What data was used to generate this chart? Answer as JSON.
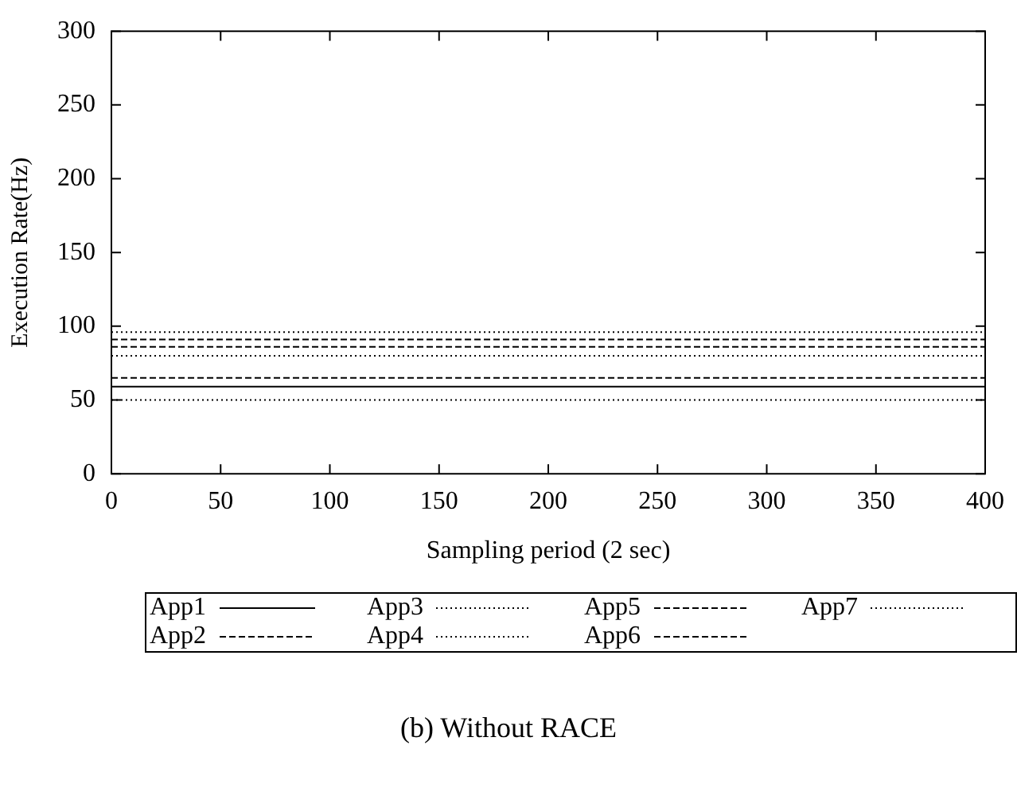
{
  "chart_data": {
    "type": "line",
    "xlabel": "Sampling period (2 sec)",
    "ylabel": "Execution Rate(Hz)",
    "annotations": [
      "(b) Without RACE"
    ],
    "x": [
      0,
      400
    ],
    "xlim": [
      0,
      400
    ],
    "xticks": [
      0,
      50,
      100,
      150,
      200,
      250,
      300,
      350,
      400
    ],
    "ylim": [
      0,
      300
    ],
    "yticks": [
      0,
      50,
      100,
      150,
      200,
      250,
      300
    ],
    "grid": false,
    "legend": "bottom",
    "marker": "none",
    "series": [
      {
        "name": "App1",
        "color": "#000000",
        "line_style": "solid",
        "values": [
          59,
          59
        ]
      },
      {
        "name": "App2",
        "color": "#000000",
        "line_style": "dashed",
        "values": [
          86,
          86
        ]
      },
      {
        "name": "App3",
        "color": "#000000",
        "line_style": "dotted",
        "values": [
          50,
          50
        ]
      },
      {
        "name": "App4",
        "color": "#000000",
        "line_style": "dotted",
        "values": [
          80,
          80
        ]
      },
      {
        "name": "App5",
        "color": "#000000",
        "line_style": "dashed",
        "values": [
          91,
          91
        ]
      },
      {
        "name": "App6",
        "color": "#000000",
        "line_style": "dashed",
        "values": [
          65,
          65
        ]
      },
      {
        "name": "App7",
        "color": "#000000",
        "line_style": "dotted",
        "values": [
          96,
          96
        ]
      }
    ]
  }
}
